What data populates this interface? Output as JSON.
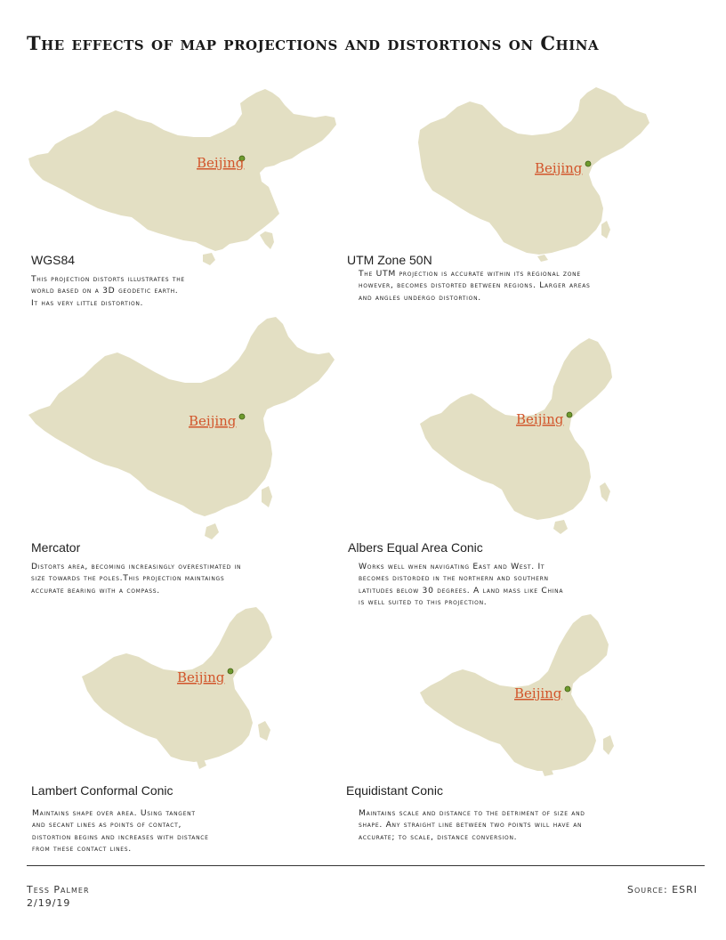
{
  "title": "The effects of map projections and distortions on China",
  "city_label": "Beijing",
  "colors": {
    "land": "#e3dfc3",
    "city_label": "#d2552b",
    "city_dot": "#6f9a2e"
  },
  "projections": [
    {
      "name": "WGS84",
      "description": "This projection distorts  illustrates the\nworld  based on a 3D geodetic earth.\nIt has very little distortion."
    },
    {
      "name": "UTM Zone 50N",
      "description": "The UTM projection is accurate within its regional zone\nhowever, becomes distorted between regions. Larger areas\nand angles undergo distortion."
    },
    {
      "name": "Mercator",
      "description": "Distorts area, becoming increasingly overestimated in\nsize towards the poles.This projection maintaings\naccurate bearing with a compass."
    },
    {
      "name": "Albers Equal Area Conic",
      "description": "Works well when navigating East and West. It\nbecomes distorded in the northern and southern\nlatitudes below 30 degrees. A land mass like China\n is well suited to this projection."
    },
    {
      "name": "Lambert Conformal Conic",
      "description": "Maintains shape over area. Using tangent\nand secant lines as points of contact,\ndistortion begins and increases with distance\nfrom these contact lines."
    },
    {
      "name": "Equidistant Conic",
      "description": "Maintains scale and distance to the detriment of size and\nshape. Any straight line between two points will have an\naccurate; to scale, distance conversion."
    }
  ],
  "footer": {
    "author": "Tess Palmer",
    "date": "2/19/19",
    "source": "Source: ESRI"
  }
}
